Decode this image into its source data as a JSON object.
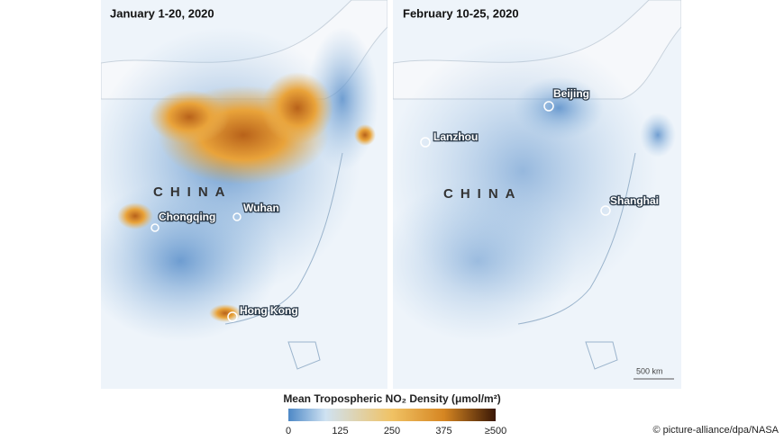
{
  "panels": [
    {
      "title": "January 1-20, 2020",
      "country": "CHINA",
      "cities": [
        "Chongqing",
        "Wuhan",
        "Hong Kong"
      ]
    },
    {
      "title": "February 10-25, 2020",
      "country": "CHINA",
      "cities": [
        "Beijing",
        "Lanzhou",
        "Shanghai"
      ],
      "scale": "500 km"
    }
  ],
  "legend": {
    "title": "Mean Tropospheric NO₂ Density (μmol/m²)",
    "ticks": [
      "0",
      "125",
      "250",
      "375",
      "≥500"
    ]
  },
  "credit": "© picture-alliance/dpa/NASA"
}
